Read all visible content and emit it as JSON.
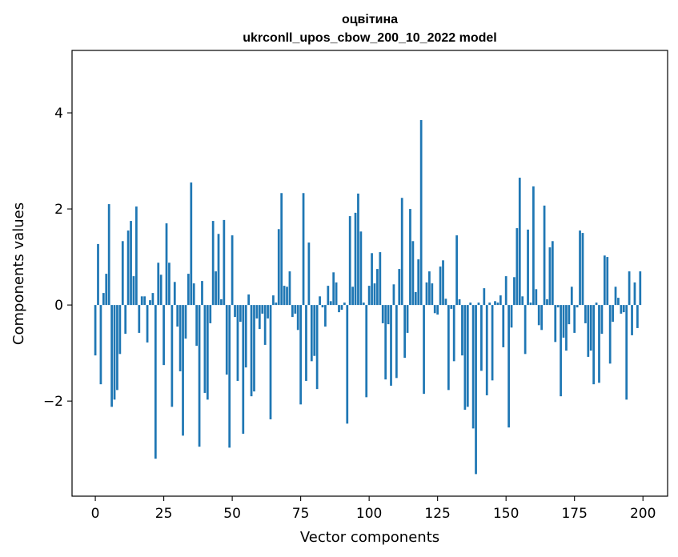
{
  "chart_data": {
    "type": "bar",
    "title_line1": "оцвітина",
    "title_line2": "ukrconll_upos_cbow_200_10_2022 model",
    "xlabel": "Vector components",
    "ylabel": "Components values",
    "xlim": [
      -8.5,
      209
    ],
    "ylim": [
      -3.98,
      5.3
    ],
    "xticks": [
      0,
      25,
      50,
      75,
      100,
      125,
      150,
      175,
      200
    ],
    "yticks": [
      -2,
      0,
      2,
      4
    ],
    "ytick_labels": [
      "−2",
      "0",
      "2",
      "4"
    ],
    "grid": false,
    "bar_color": "#1f77b4",
    "values": [
      -1.05,
      1.27,
      -1.65,
      0.25,
      0.65,
      2.1,
      -2.12,
      -1.97,
      -1.77,
      -1.02,
      1.33,
      -0.6,
      1.55,
      1.75,
      0.6,
      2.05,
      -0.58,
      0.18,
      0.18,
      -0.78,
      0.1,
      0.25,
      -3.2,
      0.88,
      0.63,
      -1.25,
      1.7,
      0.88,
      -2.12,
      0.48,
      -0.45,
      -1.38,
      -2.72,
      -0.7,
      0.65,
      2.55,
      0.45,
      -0.85,
      -2.95,
      0.5,
      -1.83,
      -1.97,
      -0.38,
      1.75,
      0.7,
      1.48,
      0.12,
      1.77,
      -1.45,
      -2.97,
      1.45,
      -0.25,
      -1.58,
      -0.35,
      -2.68,
      -1.3,
      0.22,
      -1.9,
      -1.8,
      -0.28,
      -0.5,
      -0.18,
      -0.83,
      -0.28,
      -2.38,
      0.2,
      0.05,
      1.58,
      2.33,
      0.4,
      0.38,
      0.7,
      -0.25,
      -0.18,
      -0.52,
      -2.07,
      2.33,
      -1.58,
      1.3,
      -1.17,
      -1.06,
      -1.75,
      0.18,
      -0.05,
      -0.45,
      0.4,
      0.08,
      0.68,
      0.47,
      -0.15,
      -0.1,
      0.05,
      -2.47,
      1.85,
      0.38,
      1.92,
      2.32,
      1.53,
      0.05,
      -1.92,
      0.4,
      1.08,
      0.45,
      0.75,
      1.1,
      -0.38,
      -1.55,
      -0.4,
      -1.68,
      0.43,
      -1.52,
      0.75,
      2.23,
      -1.1,
      -0.58,
      2.0,
      1.33,
      0.27,
      0.95,
      3.85,
      -1.85,
      0.47,
      0.7,
      0.45,
      -0.17,
      -0.2,
      0.8,
      0.93,
      0.13,
      -1.77,
      -0.08,
      -1.17,
      1.45,
      0.12,
      -1.05,
      -2.18,
      -2.12,
      0.05,
      -2.57,
      -3.52,
      0.05,
      -1.37,
      0.35,
      -1.88,
      0.05,
      -1.57,
      0.08,
      0.05,
      0.2,
      -0.88,
      0.6,
      -2.55,
      -0.47,
      0.58,
      1.6,
      2.65,
      0.18,
      -1.02,
      1.57,
      0.05,
      2.47,
      0.33,
      -0.42,
      -0.52,
      2.07,
      0.12,
      1.2,
      1.33,
      -0.77,
      -0.05,
      -1.9,
      -0.68,
      -0.95,
      -0.4,
      0.38,
      -0.58,
      -0.05,
      1.55,
      1.5,
      -0.38,
      -1.08,
      -0.95,
      -1.65,
      0.05,
      -1.62,
      -0.6,
      1.03,
      1.0,
      -1.22,
      -0.35,
      0.38,
      0.15,
      -0.18,
      -0.15,
      -1.97,
      0.7,
      -0.63,
      0.47,
      -0.48,
      0.7
    ]
  }
}
